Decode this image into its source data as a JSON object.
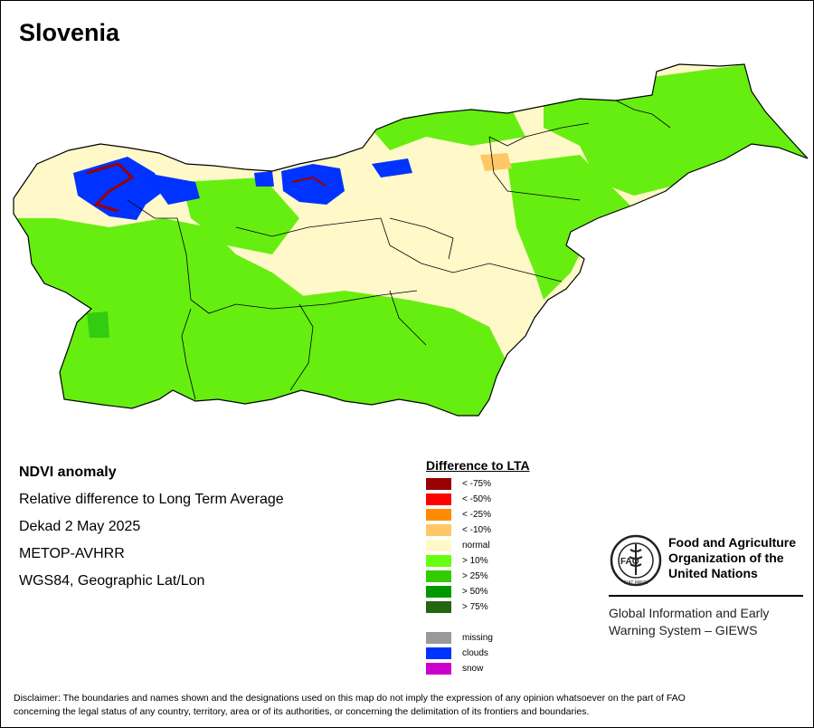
{
  "map": {
    "title": "Slovenia",
    "region_color": "#fff8c8",
    "main_color": "#66ee11",
    "secondary_color": "#33cc11",
    "cloud_color": "#0033ff",
    "border_color": "#000000"
  },
  "info": {
    "heading": "NDVI anomaly",
    "subtitle": "Relative difference to Long Term Average",
    "period": "Dekad 2 May 2025",
    "sensor": "METOP-AVHRR",
    "projection": "WGS84, Geographic Lat/Lon"
  },
  "legend": {
    "title": "Difference to LTA",
    "items": [
      {
        "label": "< -75%",
        "color": "#990000"
      },
      {
        "label": "< -50%",
        "color": "#ff0000"
      },
      {
        "label": "< -25%",
        "color": "#ff8c00"
      },
      {
        "label": "< -10%",
        "color": "#ffc866"
      },
      {
        "label": "normal",
        "color": "#fff8c8"
      },
      {
        "label": "> 10%",
        "color": "#66ff11"
      },
      {
        "label": "> 25%",
        "color": "#33cc00"
      },
      {
        "label": "> 50%",
        "color": "#009900"
      },
      {
        "label": "> 75%",
        "color": "#226611"
      }
    ],
    "extra": [
      {
        "label": "missing",
        "color": "#999999"
      },
      {
        "label": "clouds",
        "color": "#0033ff"
      },
      {
        "label": "snow",
        "color": "#cc00cc"
      }
    ]
  },
  "fao": {
    "org_line1": "Food and Agriculture",
    "org_line2": "Organization of the",
    "org_line3": "United Nations",
    "logo_text": "FAO",
    "logo_motto": "FIAT PANIS",
    "giews_line1": "Global Information and Early",
    "giews_line2": "Warning System – GIEWS"
  },
  "disclaimer": {
    "line1": "Disclaimer: The boundaries and names shown and the designations used on this map do not imply the expression of any opinion whatsoever on the part of FAO",
    "line2": "concerning the legal status of any country, territory, area or of its authorities, or concerning the delimitation of its frontiers and boundaries."
  }
}
